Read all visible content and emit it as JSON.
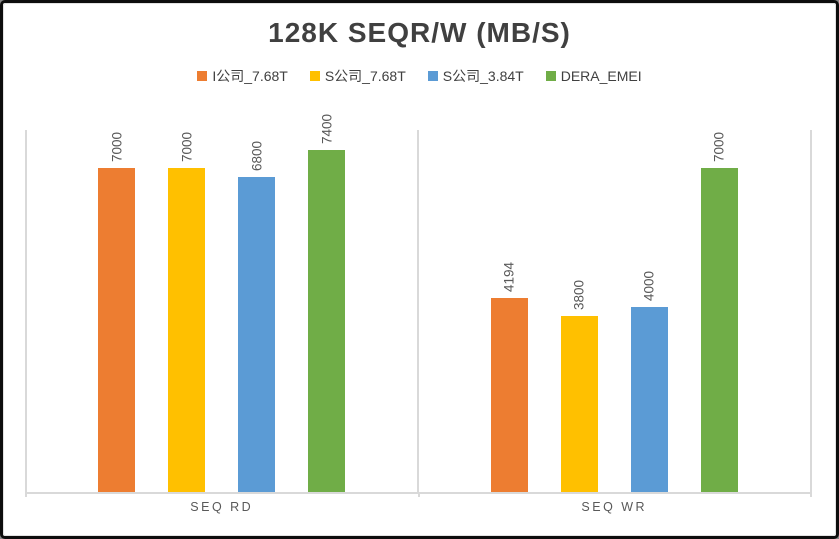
{
  "frame": {
    "background": "#ffffff",
    "outer_border_color": "#0d0d0d",
    "inner_border_color": "#e2e2e2",
    "plot_border_color": "#d9d9d9"
  },
  "chart_data": {
    "type": "bar",
    "title": "128K SEQR/W (MB/S)",
    "title_color": "#404040",
    "categories": [
      "SEQ RD",
      "SEQ WR"
    ],
    "series": [
      {
        "name": "I公司_7.68T",
        "color": "#ED7D31",
        "values": [
          7000,
          4194
        ]
      },
      {
        "name": "S公司_7.68T",
        "color": "#FFC000",
        "values": [
          7000,
          3800
        ]
      },
      {
        "name": "S公司_3.84T",
        "color": "#5B9BD5",
        "values": [
          6800,
          4000
        ]
      },
      {
        "name": "DERA_EMEI",
        "color": "#70AD47",
        "values": [
          7400,
          7000
        ]
      }
    ],
    "data_labels": [
      "7000",
      "7000",
      "6800",
      "7400",
      "4194",
      "3800",
      "4000",
      "7000"
    ],
    "data_label_rotation_deg": 90,
    "data_label_color": "#595959",
    "xlabel": "",
    "ylabel": "",
    "ylim": [
      0,
      8000
    ],
    "y_axis_visible": false,
    "grid": false,
    "legend_position": "top"
  }
}
